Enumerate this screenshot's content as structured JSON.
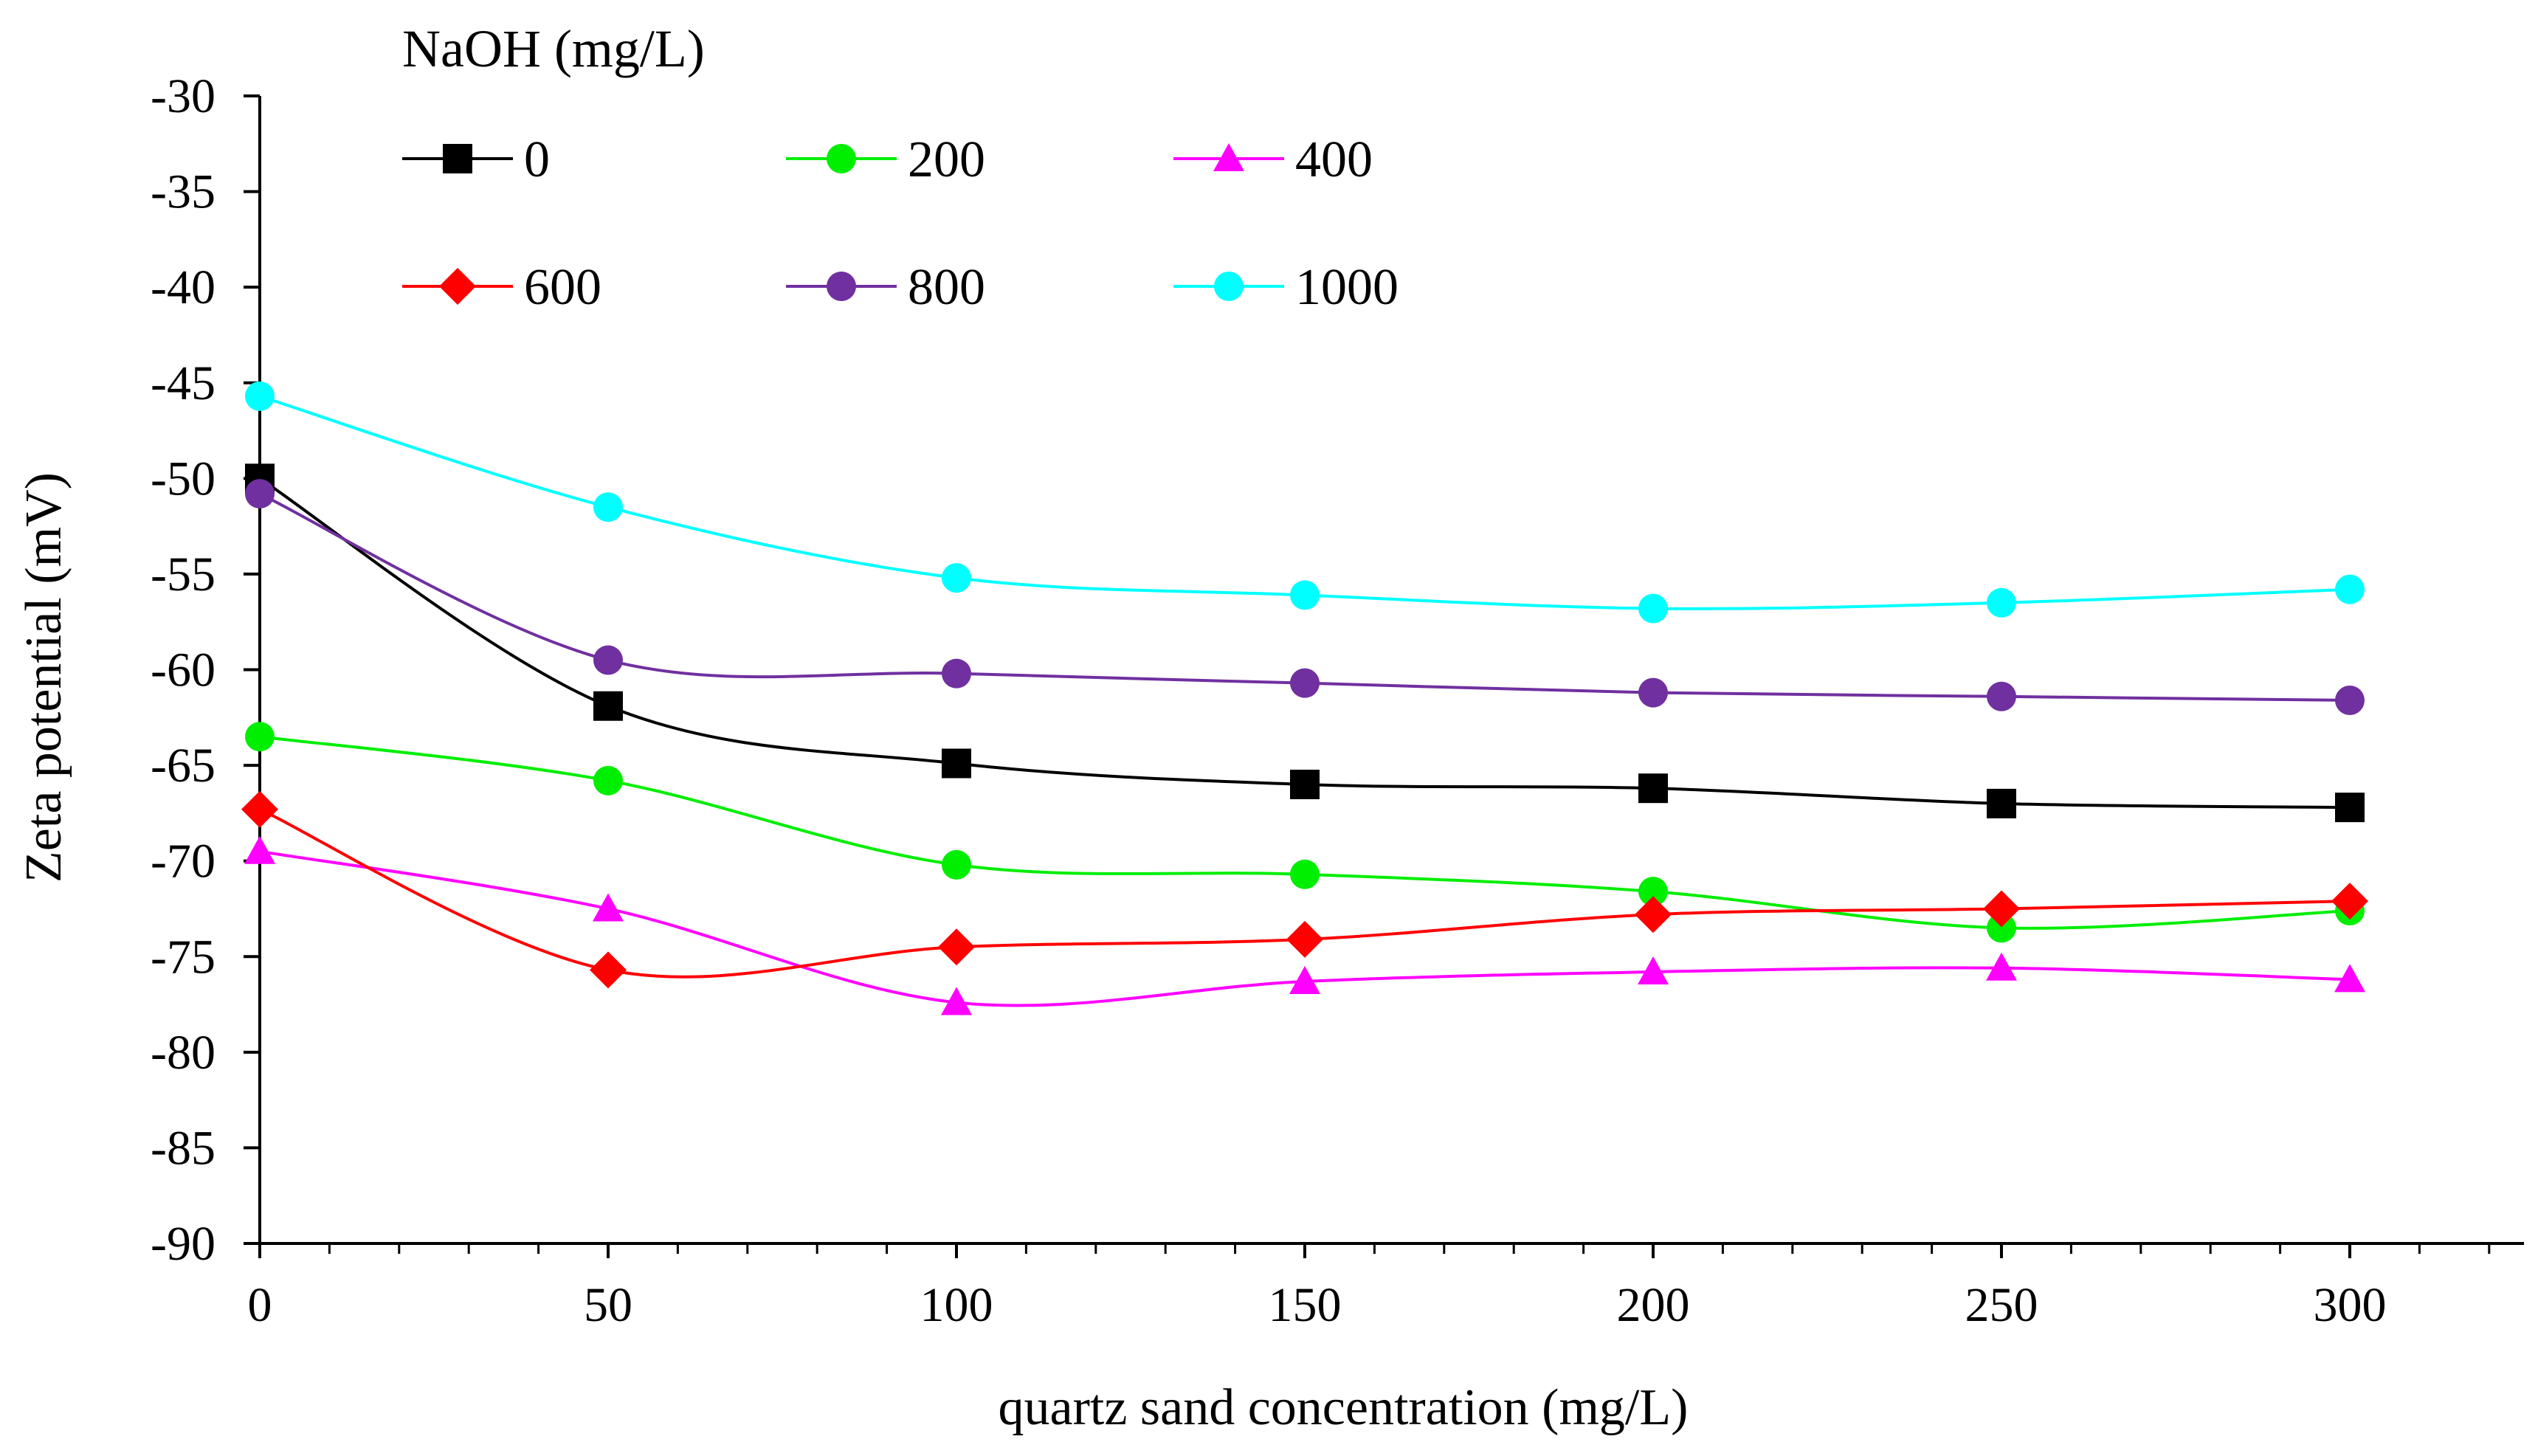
{
  "chart_data": {
    "type": "line",
    "title": "",
    "xlabel": "quartz sand concentration (mg/L)",
    "ylabel": "Zeta potential (mV)",
    "xlim": [
      0,
      325
    ],
    "ylim": [
      -90,
      -30
    ],
    "x_ticks": [
      0,
      50,
      100,
      150,
      200,
      250,
      300
    ],
    "x_tick_labels": [
      "0",
      "50",
      "100",
      "150",
      "200",
      "250",
      "300"
    ],
    "y_ticks": [
      -30,
      -35,
      -40,
      -45,
      -50,
      -55,
      -60,
      -65,
      -70,
      -75,
      -80,
      -85,
      -90
    ],
    "y_tick_labels": [
      "-30",
      "-35",
      "-40",
      "-45",
      "-50",
      "-55",
      "-60",
      "-65",
      "-70",
      "-75",
      "-80",
      "-85",
      "-90"
    ],
    "grid": false,
    "legend_title": "NaOH (mg/L)",
    "legend_position": "top-left",
    "x": [
      0,
      50,
      100,
      150,
      200,
      250,
      300
    ],
    "series": [
      {
        "name": "0",
        "color": "#000000",
        "marker": "square",
        "values": [
          -50.0,
          -61.9,
          -64.9,
          -66.0,
          -66.2,
          -67.0,
          -67.2
        ]
      },
      {
        "name": "200",
        "color": "#00ee00",
        "marker": "circle",
        "values": [
          -63.5,
          -65.8,
          -70.2,
          -70.7,
          -71.6,
          -73.5,
          -72.6
        ]
      },
      {
        "name": "400",
        "color": "#ff00ff",
        "marker": "triangle",
        "values": [
          -69.5,
          -72.5,
          -77.4,
          -76.3,
          -75.8,
          -75.6,
          -76.2
        ]
      },
      {
        "name": "600",
        "color": "#ff0000",
        "marker": "diamond",
        "values": [
          -67.3,
          -75.7,
          -74.5,
          -74.1,
          -72.8,
          -72.5,
          -72.1
        ]
      },
      {
        "name": "800",
        "color": "#7030a0",
        "marker": "circle",
        "values": [
          -50.8,
          -59.5,
          -60.2,
          -60.7,
          -61.2,
          -61.4,
          -61.6
        ]
      },
      {
        "name": "1000",
        "color": "#00ffff",
        "marker": "circle",
        "values": [
          -45.7,
          -51.5,
          -55.2,
          -56.1,
          -56.8,
          -56.5,
          -55.8
        ]
      }
    ]
  }
}
